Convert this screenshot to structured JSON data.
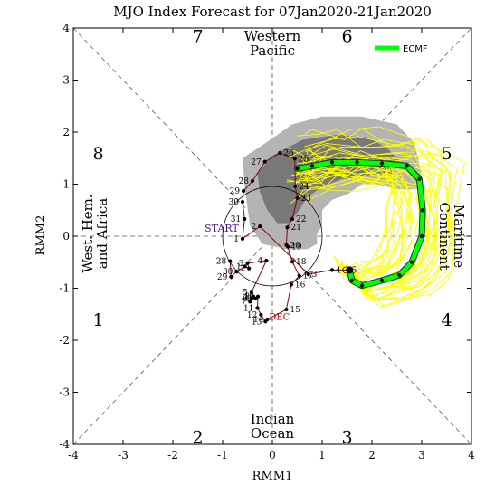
{
  "chart_data": {
    "type": "scatter",
    "title": "MJO Index Forecast for 07Jan2020-21Jan2020",
    "xlabel": "RMM1",
    "ylabel": "RMM2",
    "xlim": [
      -4,
      4
    ],
    "ylim": [
      -4,
      4
    ],
    "x_ticks": [
      "-4",
      "-3",
      "-2",
      "-1",
      "0",
      "1",
      "2",
      "3",
      "4"
    ],
    "y_ticks": [
      "-4",
      "-3",
      "-2",
      "-1",
      "0",
      "1",
      "2",
      "3",
      "4"
    ],
    "grid": "dashed diagonals and zero lines",
    "unit_circle_radius": 1,
    "phase_numbers": [
      {
        "label": "1",
        "x": -3.5,
        "y": -1.6
      },
      {
        "label": "2",
        "x": -1.5,
        "y": -3.85
      },
      {
        "label": "3",
        "x": 1.5,
        "y": -3.85
      },
      {
        "label": "4",
        "x": 3.5,
        "y": -1.6
      },
      {
        "label": "5",
        "x": 3.5,
        "y": 1.6
      },
      {
        "label": "6",
        "x": 1.5,
        "y": 3.85
      },
      {
        "label": "7",
        "x": -1.5,
        "y": 3.85
      },
      {
        "label": "8",
        "x": -3.5,
        "y": 1.6
      }
    ],
    "regions": {
      "top": [
        "Western",
        "Pacific"
      ],
      "bottom": [
        "Indian",
        "Ocean"
      ],
      "left": [
        "West. Hem.",
        "and Africa"
      ],
      "right": [
        "Maritime",
        "Continent"
      ]
    },
    "start_label": "START",
    "month_label": "DEC",
    "legend": {
      "label": "ECMF",
      "color": "#00ff00",
      "position": "top-right"
    },
    "colors": {
      "observed": "#8b0000",
      "ensemble": "#ffff00",
      "spread_light": "#b4b4b4",
      "spread_dark": "#787878",
      "mean": "#00ff00"
    },
    "observed": [
      {
        "day": "28",
        "x": -0.85,
        "y": -0.48
      },
      {
        "day": "29",
        "x": -0.83,
        "y": -0.78
      },
      {
        "day": "30",
        "x": -0.72,
        "y": -0.68
      },
      {
        "day": "1",
        "x": -0.55,
        "y": -0.58
      },
      {
        "day": "2",
        "x": -0.47,
        "y": -0.62
      },
      {
        "day": "3",
        "x": -0.5,
        "y": -0.52
      },
      {
        "day": "4",
        "x": -0.12,
        "y": -0.47
      },
      {
        "day": "5",
        "x": -0.42,
        "y": -1.08
      },
      {
        "day": "6",
        "x": -0.42,
        "y": -1.2
      },
      {
        "day": "7",
        "x": -0.45,
        "y": -1.26
      },
      {
        "day": "8",
        "x": -0.38,
        "y": -1.16
      },
      {
        "day": "9",
        "x": -0.34,
        "y": -1.2
      },
      {
        "day": "10",
        "x": -0.29,
        "y": -1.16
      },
      {
        "day": "11",
        "x": -0.3,
        "y": -1.38
      },
      {
        "day": "12",
        "x": -0.23,
        "y": -1.51
      },
      {
        "day": "13",
        "x": -0.14,
        "y": -1.64
      },
      {
        "day": "14",
        "x": -0.1,
        "y": -1.6
      },
      {
        "day": "15",
        "x": 0.28,
        "y": -1.41
      },
      {
        "day": "16",
        "x": 0.38,
        "y": -0.93
      },
      {
        "day": "17",
        "x": 0.54,
        "y": -0.76
      },
      {
        "day": "18",
        "x": 0.4,
        "y": -0.49
      },
      {
        "day": "19",
        "x": 0.31,
        "y": -0.2
      },
      {
        "day": "20",
        "x": 0.28,
        "y": -0.17
      },
      {
        "day": "21",
        "x": 0.3,
        "y": 0.17
      },
      {
        "day": "22",
        "x": 0.4,
        "y": 0.33
      },
      {
        "day": "23",
        "x": 0.5,
        "y": 0.73
      },
      {
        "day": "24",
        "x": 0.46,
        "y": 0.96
      },
      {
        "day": "25",
        "x": 0.45,
        "y": 1.49
      },
      {
        "day": "26",
        "x": 0.15,
        "y": 1.6
      },
      {
        "day": "27",
        "x": -0.15,
        "y": 1.43
      },
      {
        "day": "28",
        "x": -0.4,
        "y": 1.06
      },
      {
        "day": "29",
        "x": -0.58,
        "y": 0.87
      },
      {
        "day": "30",
        "x": -0.6,
        "y": 0.66
      },
      {
        "day": "31",
        "x": -0.56,
        "y": 0.33
      },
      {
        "day": "1",
        "x": -0.6,
        "y": -0.05
      },
      {
        "day": "2",
        "x": -0.25,
        "y": 0.19
      },
      {
        "day": "3",
        "x": 0.72,
        "y": -0.73
      },
      {
        "day": "4",
        "x": 1.2,
        "y": -0.65
      },
      {
        "day": "5",
        "x": 1.52,
        "y": -0.65
      }
    ],
    "ensemble_mean": [
      {
        "x": 1.55,
        "y": -0.65
      },
      {
        "x": 1.6,
        "y": -0.85
      },
      {
        "x": 1.8,
        "y": -0.95
      },
      {
        "x": 2.2,
        "y": -0.85
      },
      {
        "x": 2.55,
        "y": -0.75
      },
      {
        "x": 2.8,
        "y": -0.5
      },
      {
        "x": 3.0,
        "y": 0.0
      },
      {
        "x": 3.02,
        "y": 0.5
      },
      {
        "x": 2.95,
        "y": 1.1
      },
      {
        "x": 2.7,
        "y": 1.35
      },
      {
        "x": 2.2,
        "y": 1.4
      },
      {
        "x": 1.7,
        "y": 1.42
      },
      {
        "x": 1.2,
        "y": 1.42
      },
      {
        "x": 0.8,
        "y": 1.35
      },
      {
        "x": 0.5,
        "y": 1.3
      }
    ]
  }
}
